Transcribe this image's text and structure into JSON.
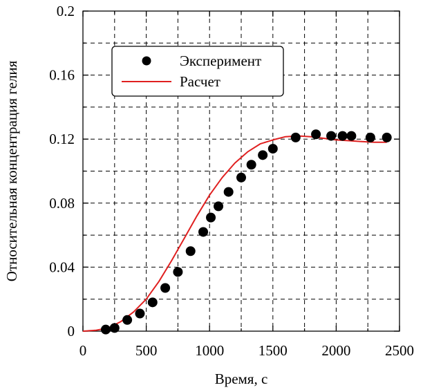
{
  "chart_data": {
    "type": "line",
    "title": "",
    "xlabel": "Время, с",
    "ylabel": "Относительная концентрация гелия",
    "xlim": [
      0,
      2500
    ],
    "ylim": [
      0,
      0.2
    ],
    "xticks": [
      0,
      500,
      1000,
      1500,
      2000,
      2500
    ],
    "yticks": [
      0,
      0.04,
      0.08,
      0.12,
      0.16,
      0.2
    ],
    "xtick_labels": [
      "0",
      "500",
      "1000",
      "1500",
      "2000",
      "2500"
    ],
    "ytick_labels": [
      "0",
      "0.04",
      "0.08",
      "0.12",
      "0.16",
      "0.2"
    ],
    "grid": true,
    "legend_position": "upper-left",
    "series": [
      {
        "name": "Эксперимент",
        "kind": "scatter",
        "color": "#000000",
        "points": [
          [
            180,
            0.001
          ],
          [
            250,
            0.002
          ],
          [
            350,
            0.007
          ],
          [
            450,
            0.011
          ],
          [
            550,
            0.018
          ],
          [
            650,
            0.027
          ],
          [
            750,
            0.037
          ],
          [
            850,
            0.05
          ],
          [
            950,
            0.062
          ],
          [
            1010,
            0.071
          ],
          [
            1070,
            0.078
          ],
          [
            1150,
            0.087
          ],
          [
            1250,
            0.096
          ],
          [
            1330,
            0.104
          ],
          [
            1420,
            0.11
          ],
          [
            1500,
            0.114
          ],
          [
            1680,
            0.121
          ],
          [
            1840,
            0.123
          ],
          [
            1960,
            0.122
          ],
          [
            2050,
            0.122
          ],
          [
            2120,
            0.122
          ],
          [
            2270,
            0.121
          ],
          [
            2400,
            0.121
          ]
        ]
      },
      {
        "name": "Расчет",
        "kind": "line",
        "color": "#e02020",
        "points": [
          [
            0,
            0
          ],
          [
            100,
            0.0005
          ],
          [
            200,
            0.002
          ],
          [
            300,
            0.006
          ],
          [
            400,
            0.012
          ],
          [
            500,
            0.02
          ],
          [
            600,
            0.031
          ],
          [
            700,
            0.044
          ],
          [
            800,
            0.058
          ],
          [
            900,
            0.072
          ],
          [
            1000,
            0.085
          ],
          [
            1100,
            0.096
          ],
          [
            1200,
            0.105
          ],
          [
            1300,
            0.112
          ],
          [
            1400,
            0.117
          ],
          [
            1500,
            0.1195
          ],
          [
            1600,
            0.1215
          ],
          [
            1700,
            0.122
          ],
          [
            1800,
            0.1215
          ],
          [
            1900,
            0.1205
          ],
          [
            2000,
            0.1195
          ],
          [
            2100,
            0.119
          ],
          [
            2200,
            0.1185
          ],
          [
            2300,
            0.118
          ],
          [
            2400,
            0.118
          ]
        ]
      }
    ]
  }
}
